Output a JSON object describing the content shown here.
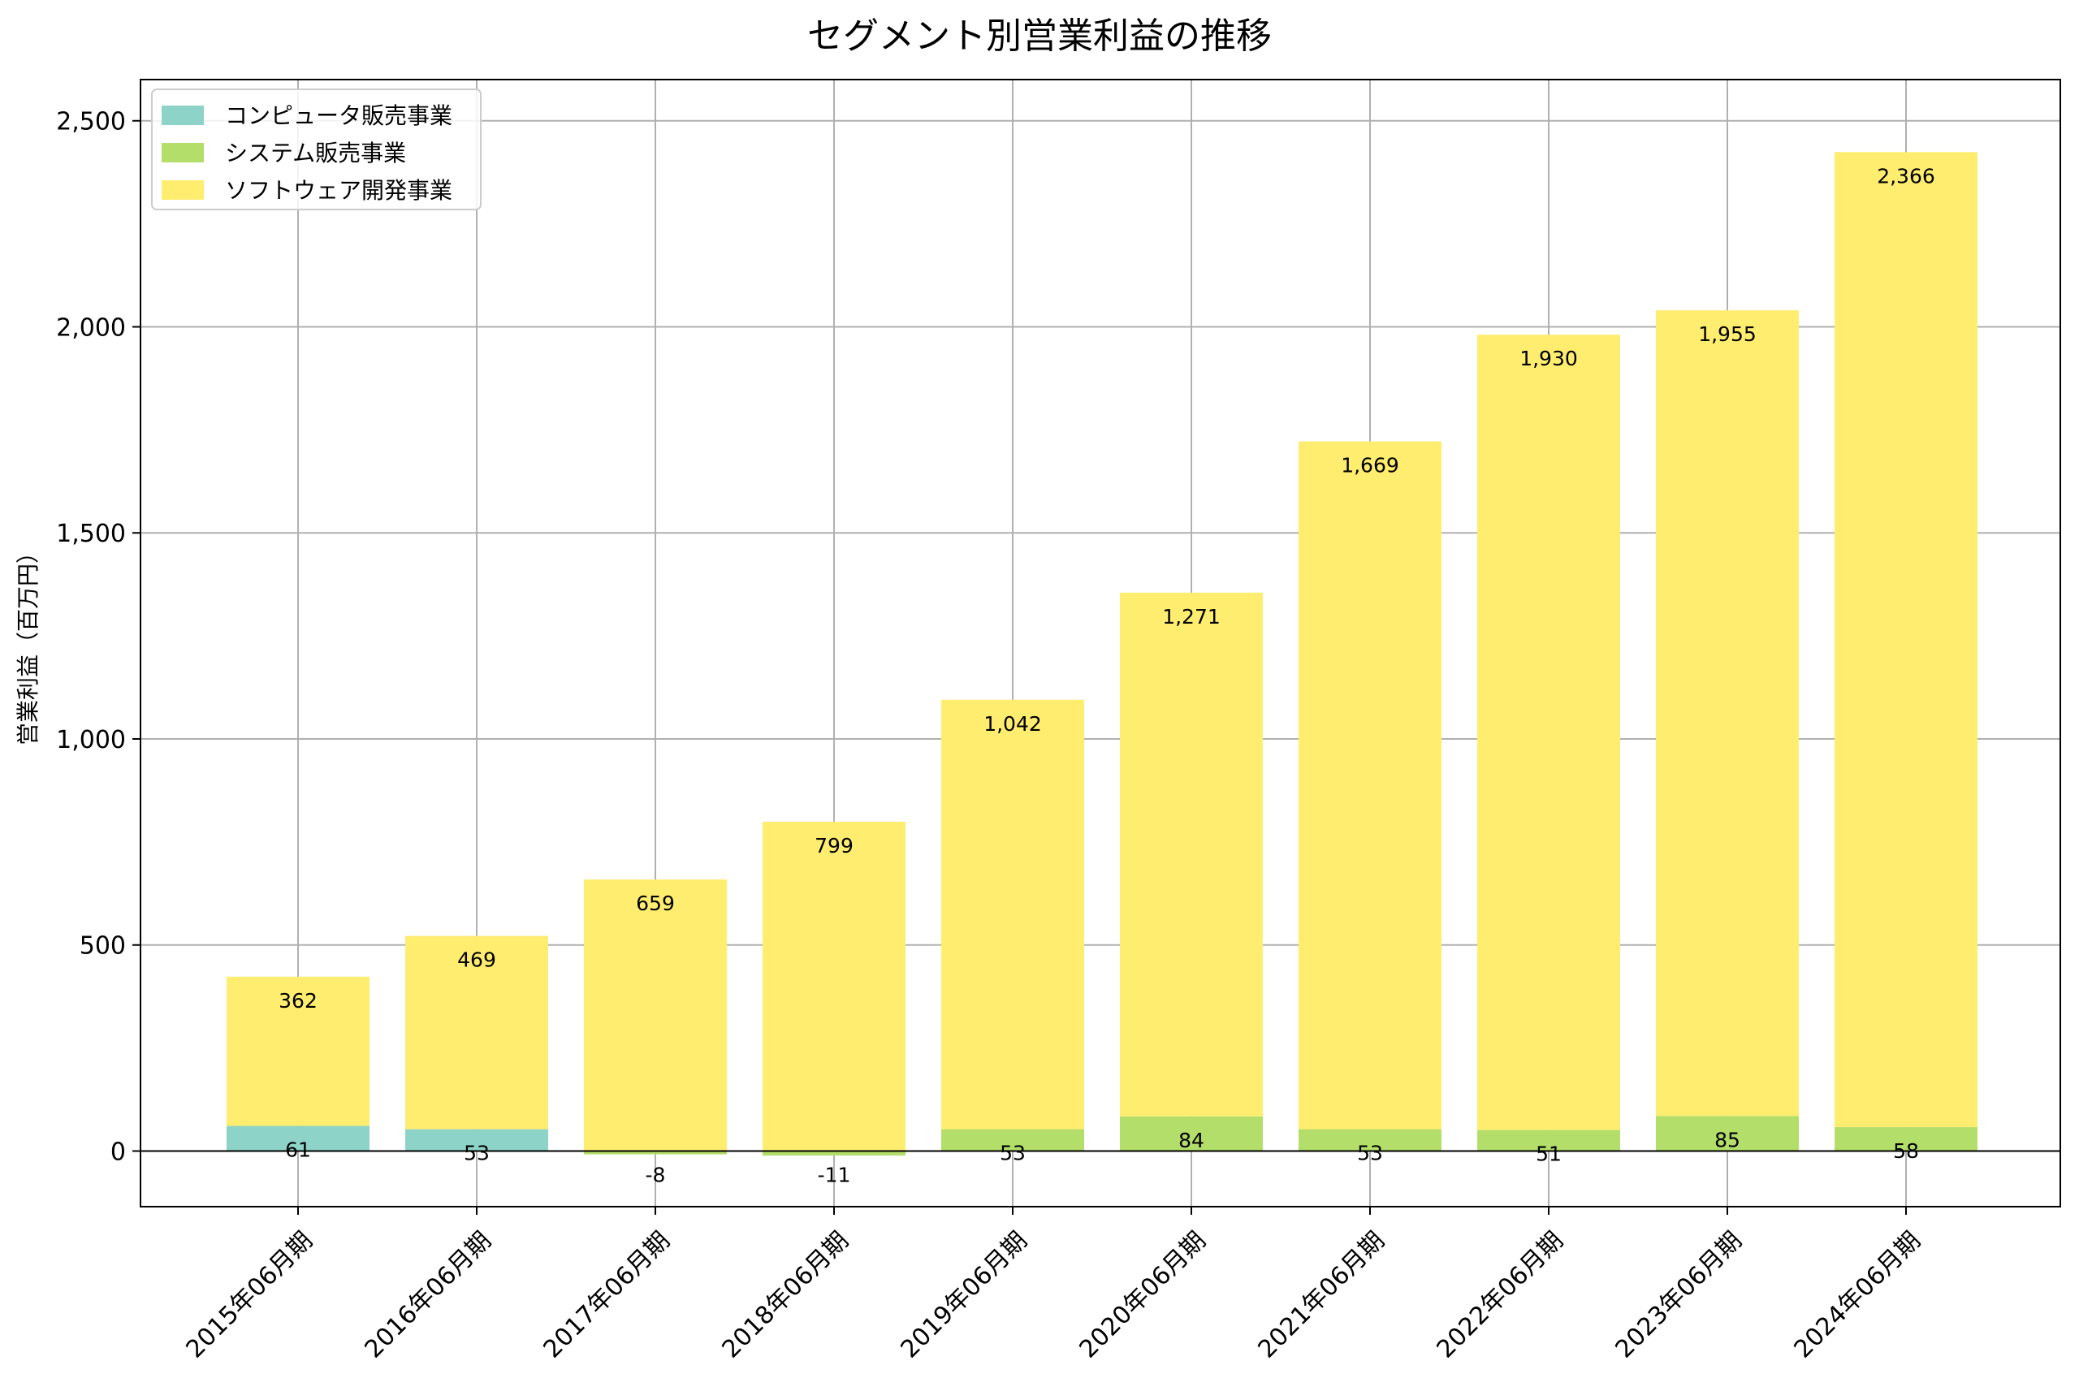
{
  "chart_data": {
    "type": "bar",
    "stacked": true,
    "title": "セグメント別営業利益の推移",
    "xlabel": "",
    "ylabel": "営業利益（百万円）",
    "ylim": [
      -135,
      2600
    ],
    "yticks": [
      0,
      500,
      1000,
      1500,
      2000,
      2500
    ],
    "ytick_labels": [
      "0",
      "500",
      "1,000",
      "1,500",
      "2,000",
      "2,500"
    ],
    "grid": true,
    "legend_position": "top-left",
    "categories": [
      "2015年06月期",
      "2016年06月期",
      "2017年06月期",
      "2018年06月期",
      "2019年06月期",
      "2020年06月期",
      "2021年06月期",
      "2022年06月期",
      "2023年06月期",
      "2024年06月期"
    ],
    "series": [
      {
        "name": "コンピュータ販売事業",
        "color": "#8dd3c7",
        "values": [
          61,
          53,
          null,
          null,
          null,
          null,
          null,
          null,
          null,
          null
        ],
        "labels": [
          "61",
          "53",
          "",
          "",
          "",
          "",
          "",
          "",
          "",
          ""
        ]
      },
      {
        "name": "システム販売事業",
        "color": "#b3de69",
        "values": [
          null,
          null,
          -8,
          -11,
          53,
          84,
          53,
          51,
          85,
          58
        ],
        "labels": [
          "",
          "",
          "-8",
          "-11",
          "53",
          "84",
          "53",
          "51",
          "85",
          "58"
        ]
      },
      {
        "name": "ソフトウェア開発事業",
        "color": "#ffed6f",
        "values": [
          362,
          469,
          659,
          799,
          1042,
          1271,
          1669,
          1930,
          1955,
          2366
        ],
        "labels": [
          "362",
          "469",
          "659",
          "799",
          "1,042",
          "1,271",
          "1,669",
          "1,930",
          "1,955",
          "2,366"
        ]
      }
    ]
  }
}
